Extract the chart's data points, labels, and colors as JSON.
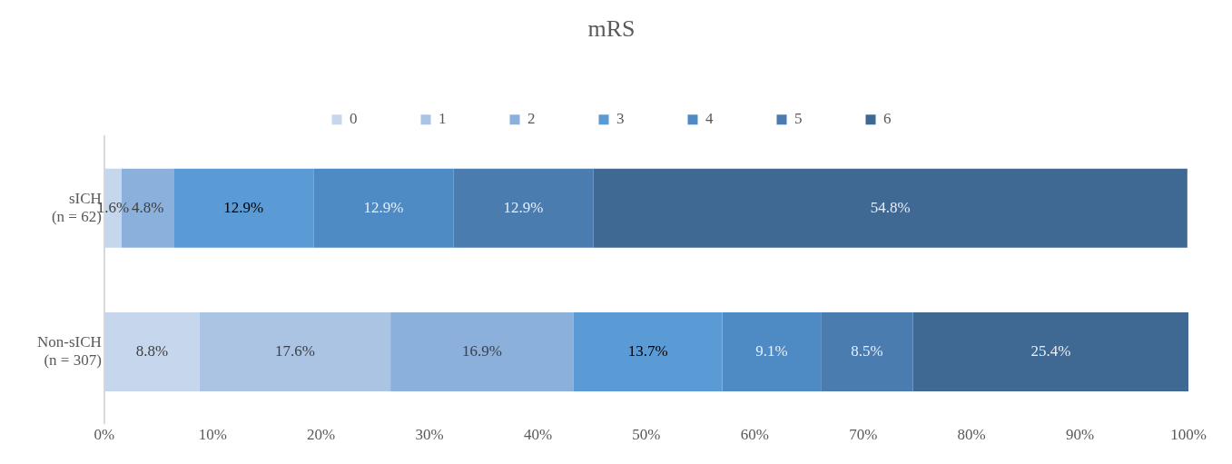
{
  "chart_data": {
    "type": "bar",
    "title": "mRS",
    "orientation": "horizontal",
    "stacked": true,
    "categories": [
      "sICH\n(n = 62)",
      "Non-sICH\n(n = 307)"
    ],
    "series": [
      {
        "name": "0",
        "color": "#c6d6ec",
        "values": [
          1.6,
          8.8
        ],
        "value_labels": [
          "1.6%",
          "8.8%"
        ]
      },
      {
        "name": "1",
        "color": "#abc4e4",
        "values": [
          0,
          17.6
        ],
        "value_labels": [
          null,
          "17.6%"
        ]
      },
      {
        "name": "2",
        "color": "#8cb0dc",
        "values": [
          4.8,
          16.9
        ],
        "value_labels": [
          "4.8%",
          "16.9%"
        ]
      },
      {
        "name": "3",
        "color": "#5b9bd5",
        "values": [
          12.9,
          13.7
        ],
        "value_labels": [
          "12.9%",
          "13.7%"
        ]
      },
      {
        "name": "4",
        "color": "#4e8bc4",
        "values": [
          12.9,
          9.1
        ],
        "value_labels": [
          "12.9%",
          "9.1%"
        ]
      },
      {
        "name": "5",
        "color": "#4a7cb0",
        "values": [
          12.9,
          8.5
        ],
        "value_labels": [
          "12.9%",
          "8.5%"
        ]
      },
      {
        "name": "6",
        "color": "#3f6892",
        "values": [
          54.8,
          25.4
        ],
        "value_labels": [
          "54.8%",
          "25.4%"
        ]
      }
    ],
    "xlim": [
      0,
      100
    ],
    "xticks": [
      {
        "value": 0,
        "label": "0%"
      },
      {
        "value": 10,
        "label": "10%"
      },
      {
        "value": 20,
        "label": "20%"
      },
      {
        "value": 30,
        "label": "30%"
      },
      {
        "value": 40,
        "label": "40%"
      },
      {
        "value": 50,
        "label": "50%"
      },
      {
        "value": 60,
        "label": "60%"
      },
      {
        "value": 70,
        "label": "70%"
      },
      {
        "value": 80,
        "label": "80%"
      },
      {
        "value": 90,
        "label": "90%"
      },
      {
        "value": 100,
        "label": "100%"
      }
    ],
    "grid": false,
    "legend": "top"
  }
}
